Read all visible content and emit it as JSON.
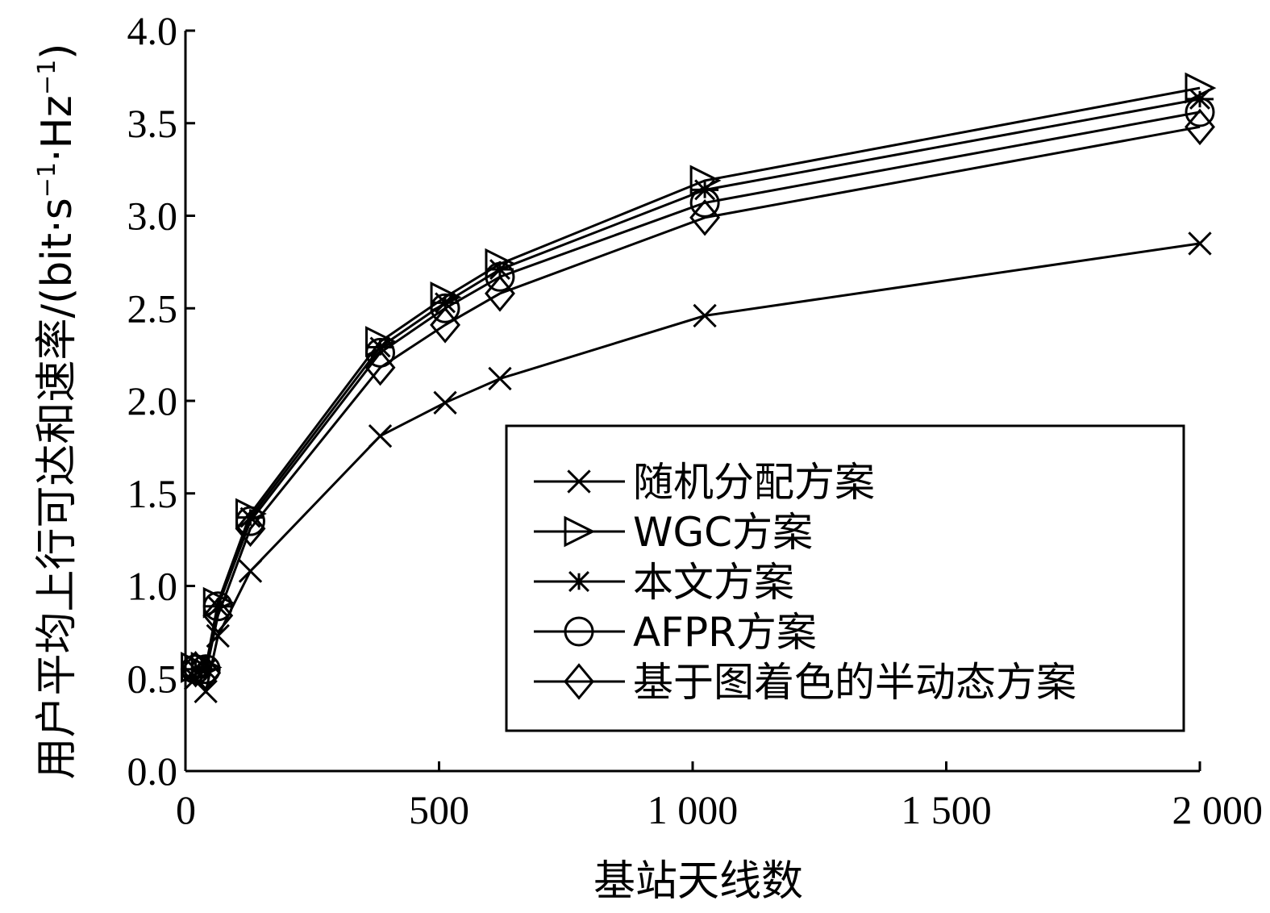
{
  "chart_data": {
    "type": "line",
    "title": "",
    "xlabel": "基站天线数",
    "ylabel": "用户平均上行可达和速率/(bit·s⁻¹·Hz⁻¹)",
    "ylabel_parts": {
      "main": "用户平均上行可达和速率/(bit·s",
      "sup1": "−1",
      "mid": "·Hz",
      "sup2": "−1",
      "end": ")"
    },
    "xlim": [
      0,
      2000
    ],
    "ylim": [
      0,
      4.0
    ],
    "x_ticks": [
      0,
      500,
      1000,
      1500,
      2000
    ],
    "x_tick_labels": [
      "0",
      "500",
      "1 000",
      "1 500",
      "2 000"
    ],
    "y_ticks": [
      0,
      0.5,
      1.0,
      1.5,
      2.0,
      2.5,
      3.0,
      3.5,
      4.0
    ],
    "y_tick_labels": [
      "0.0",
      "0.5",
      "1.0",
      "1.5",
      "2.0",
      "2.5",
      "3.0",
      "3.5",
      "4.0"
    ],
    "grid": false,
    "legend_position": "lower-right",
    "x": [
      20,
      40,
      64,
      128,
      384,
      512,
      620,
      1024,
      2000
    ],
    "series": [
      {
        "name": "随机分配方案",
        "marker": "x",
        "values": [
          0.5,
          0.43,
          0.73,
          1.08,
          1.81,
          1.99,
          2.12,
          2.46,
          2.85
        ]
      },
      {
        "name": "WGC方案",
        "marker": "triangle-right",
        "values": [
          0.56,
          0.56,
          0.91,
          1.39,
          2.32,
          2.56,
          2.74,
          3.19,
          3.69
        ]
      },
      {
        "name": "本文方案",
        "marker": "star",
        "values": [
          0.55,
          0.55,
          0.89,
          1.37,
          2.29,
          2.53,
          2.71,
          3.14,
          3.63
        ]
      },
      {
        "name": "AFPR方案",
        "marker": "circle",
        "values": [
          0.55,
          0.55,
          0.89,
          1.35,
          2.26,
          2.5,
          2.67,
          3.07,
          3.56
        ]
      },
      {
        "name": "基于图着色的半动态方案",
        "marker": "diamond",
        "values": [
          0.55,
          0.53,
          0.84,
          1.31,
          2.18,
          2.41,
          2.58,
          2.99,
          3.48
        ]
      }
    ]
  }
}
